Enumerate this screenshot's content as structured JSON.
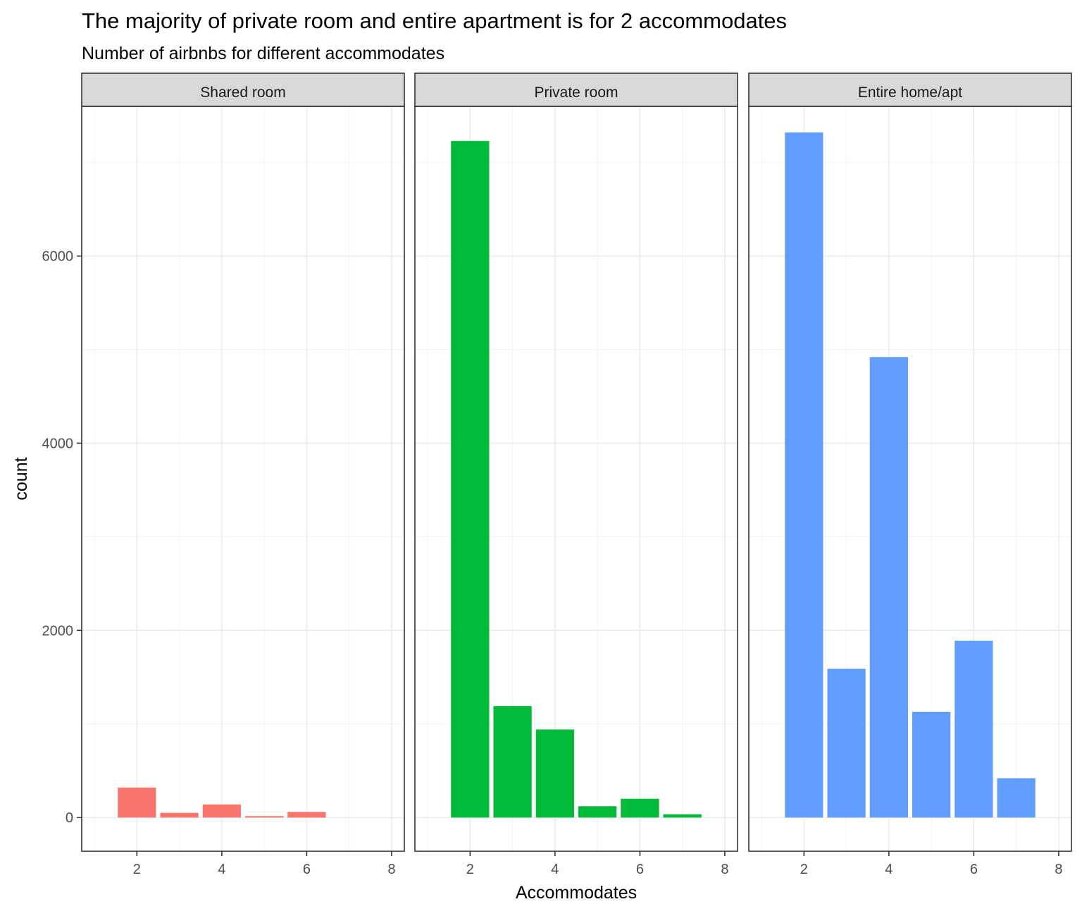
{
  "chart_data": {
    "type": "bar",
    "title": "The majority of private room and entire apartment is for 2 accommodates",
    "subtitle": "Number of airbnbs for different accommodates",
    "xlabel": "Accommodates",
    "ylabel": "count",
    "xlim": [
      0.7,
      8.3
    ],
    "ylim": [
      -360,
      7600
    ],
    "x_ticks": [
      2,
      4,
      6,
      8
    ],
    "y_ticks": [
      0,
      2000,
      4000,
      6000
    ],
    "grid": true,
    "facets": [
      {
        "name": "Shared room",
        "color": "#F8766D",
        "x": [
          2,
          3,
          4,
          5,
          6
        ],
        "values": [
          320,
          50,
          140,
          15,
          60
        ]
      },
      {
        "name": "Private room",
        "color": "#00BA38",
        "x": [
          2,
          3,
          4,
          5,
          6,
          7
        ],
        "values": [
          7230,
          1190,
          940,
          120,
          200,
          35
        ]
      },
      {
        "name": "Entire home/apt",
        "color": "#619CFF",
        "x": [
          2,
          3,
          4,
          5,
          6,
          7
        ],
        "values": [
          7320,
          1590,
          4920,
          1130,
          1890,
          420
        ]
      }
    ]
  }
}
